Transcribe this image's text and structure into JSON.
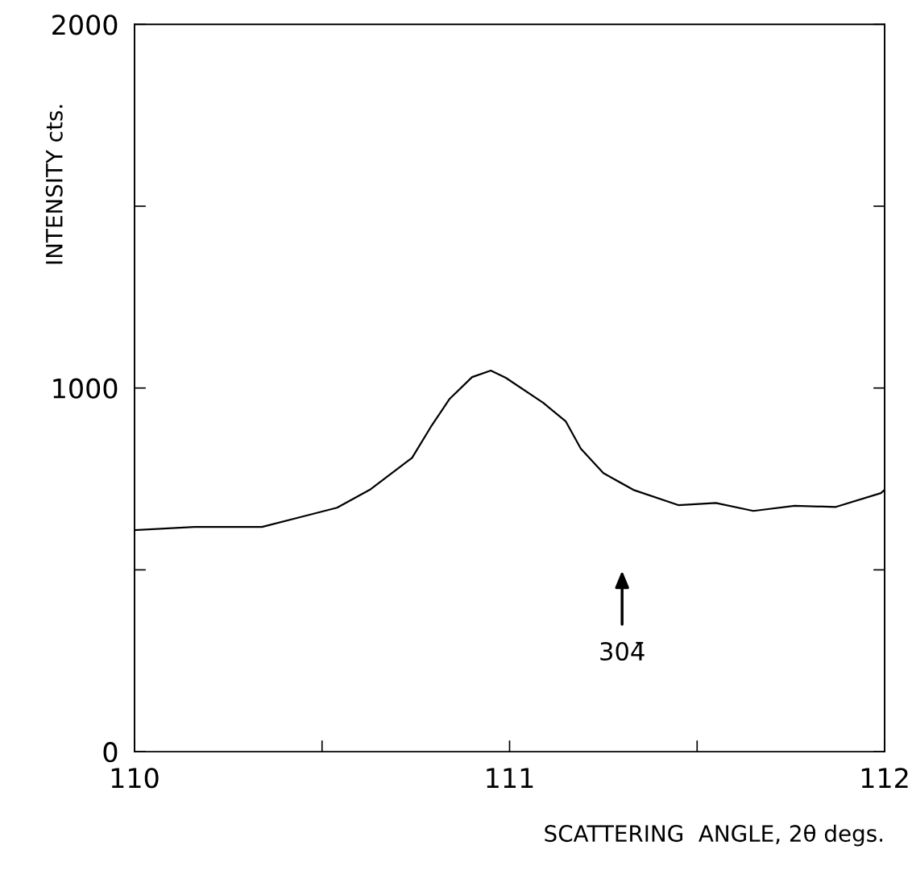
{
  "chart_data": {
    "type": "line",
    "xlabel": "SCATTERING  ANGLE, 2θ degs.",
    "ylabel": "INTENSITY cts.",
    "x": [
      110.0,
      110.16,
      110.34,
      110.45,
      110.54,
      110.63,
      110.74,
      110.79,
      110.84,
      110.9,
      110.95,
      110.99,
      111.09,
      111.15,
      111.19,
      111.25,
      111.33,
      111.45,
      111.55,
      111.65,
      111.76,
      111.87,
      111.99,
      112.0
    ],
    "series": [
      {
        "color": "#000000",
        "values": [
          609,
          618,
          618,
          647,
          671,
          722,
          808,
          893,
          970,
          1030,
          1048,
          1028,
          959,
          908,
          833,
          766,
          720,
          678,
          684,
          662,
          676,
          673,
          711,
          720
        ]
      }
    ],
    "xlim": [
      110,
      112
    ],
    "ylim": [
      0,
      2000
    ],
    "xticks": [
      110,
      {
        "value": 110.5,
        "label": null
      },
      111,
      {
        "value": 111.5,
        "label": null
      },
      112
    ],
    "yticks": [
      0,
      {
        "value": 500,
        "label": null
      },
      1000,
      {
        "value": 1500,
        "label": null
      },
      2000
    ],
    "annotations": [
      "304̄"
    ],
    "grid": false,
    "legend": false,
    "marker": "none",
    "line_style": "solid"
  }
}
